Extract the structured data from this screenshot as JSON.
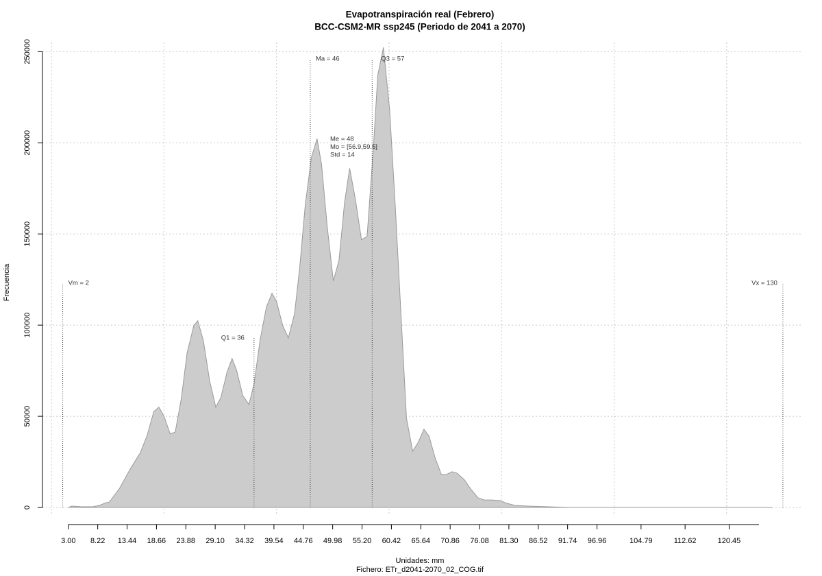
{
  "chart_data": {
    "type": "area",
    "title": "Evapotranspiración real (Febrero)",
    "subtitle": "BCC-CSM2-MR ssp245 (Periodo de 2041 a 2070)",
    "x_label": "Unidades: mm",
    "caption": "Fichero: ETr_d2041-2070_02_COG.tif",
    "y_label": "Frecuencia",
    "color": "#cccccc",
    "line_color": "#9a9a9a",
    "grid": true,
    "x": [
      3.0,
      3.6,
      5.4,
      7.3,
      8.5,
      9.7,
      10.3,
      12.1,
      14.0,
      15.8,
      17.0,
      18.2,
      19.1,
      20.0,
      21.1,
      22.0,
      23.1,
      24.1,
      25.3,
      26.0,
      27.0,
      28.1,
      29.2,
      30.1,
      31.2,
      32.1,
      32.9,
      34.0,
      35.1,
      36.0,
      37.1,
      38.2,
      39.2,
      40.0,
      41.1,
      42.1,
      43.2,
      44.1,
      45.1,
      46.2,
      47.2,
      48.0,
      49.0,
      50.1,
      51.1,
      52.1,
      53.0,
      54.0,
      55.1,
      56.1,
      57.2,
      58.0,
      59.0,
      60.1,
      61.1,
      62.0,
      63.1,
      64.2,
      65.2,
      66.2,
      67.1,
      68.2,
      69.3,
      70.2,
      71.2,
      72.1,
      73.4,
      74.6,
      75.8,
      76.9,
      78.2,
      79.7,
      80.9,
      82.4,
      84.6,
      88.2,
      91.9,
      128.1
    ],
    "values": [
      0,
      750,
      400,
      400,
      1100,
      2600,
      3000,
      10500,
      21100,
      30100,
      39500,
      52700,
      55000,
      50100,
      40300,
      41400,
      60200,
      84700,
      99800,
      102400,
      91500,
      69700,
      55000,
      60200,
      74200,
      81700,
      75300,
      61400,
      56500,
      67800,
      92200,
      109900,
      117500,
      113000,
      99800,
      93000,
      106200,
      131000,
      165700,
      192000,
      202200,
      188300,
      154400,
      124200,
      135500,
      167500,
      186000,
      169400,
      146800,
      148700,
      196500,
      237200,
      252300,
      218400,
      165700,
      113000,
      48900,
      30900,
      35800,
      42900,
      39200,
      27100,
      18100,
      18100,
      19600,
      18800,
      15100,
      9800,
      5300,
      4100,
      4100,
      3800,
      2300,
      1100,
      750,
      400,
      0,
      0
    ],
    "xlim": [
      -1.6,
      133.3
    ],
    "ylim": [
      -4500,
      255000
    ],
    "xticks": [
      {
        "value": 3,
        "label": "3.00"
      },
      8.22,
      13.44,
      18.66,
      23.88,
      {
        "value": 29.1,
        "label": "29.10"
      },
      34.32,
      39.54,
      44.76,
      49.98,
      {
        "value": 55.2,
        "label": "55.20"
      },
      60.42,
      65.64,
      70.86,
      76.08,
      {
        "value": 81.3,
        "label": "81.30"
      },
      86.52,
      91.74,
      96.96,
      104.79,
      112.62,
      120.45
    ],
    "yticks": [
      0,
      50000,
      100000,
      150000,
      200000,
      250000
    ],
    "xgrid": [
      0,
      20,
      40,
      60,
      80,
      100,
      120
    ],
    "annotations": [
      {
        "label": "Vm = 2",
        "x": 2
      },
      {
        "label": "Q1 = 36",
        "x": 36
      },
      {
        "label": "Ma = 46",
        "x": 46
      },
      {
        "label": "Q3 = 57",
        "x": 57
      },
      {
        "label": "Vx = 130",
        "x": 130
      }
    ],
    "stats_text": [
      "Me = 48",
      "Mo = [56.9,59.5]",
      "Std = 14"
    ]
  }
}
